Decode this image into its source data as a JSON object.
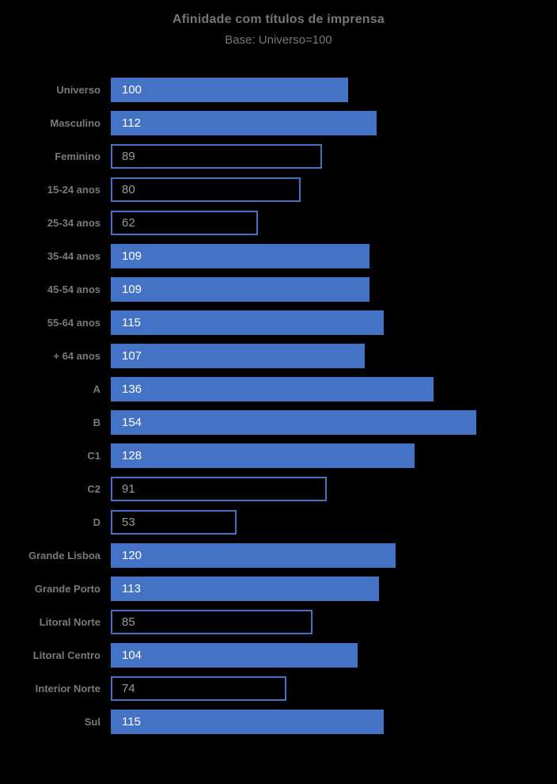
{
  "header": {
    "title": "Afinidade com títulos de imprensa",
    "subtitle": "Base: Universo=100"
  },
  "colors": {
    "background": "#000000",
    "bar_fill": "#4472C4",
    "bar_outline": "#4472C4",
    "title_text": "#767676",
    "category_label_text": "#7A7A7A",
    "value_text_on_filled": "#FFFFFF",
    "value_text_on_outlined": "#9A9A9A"
  },
  "chart_data": {
    "type": "bar",
    "orientation": "horizontal",
    "title": "Afinidade com títulos de imprensa",
    "subtitle": "Base: Universo=100",
    "categories": [
      "Universo",
      "Masculino",
      "Feminino",
      "15-24 anos",
      "25-34 anos",
      "35-44 anos",
      "45-54 anos",
      "55-64 anos",
      "+ 64 anos",
      "A",
      "B",
      "C1",
      "C2",
      "D",
      "Grande Lisboa",
      "Grande Porto",
      "Litoral Norte",
      "Litoral Centro",
      "Interior Norte",
      "Sul"
    ],
    "values": [
      100,
      112,
      89,
      80,
      62,
      109,
      109,
      115,
      107,
      136,
      154,
      128,
      91,
      53,
      120,
      113,
      85,
      104,
      74,
      115
    ],
    "bar_styles": [
      "filled",
      "filled",
      "outlined",
      "outlined",
      "outlined",
      "filled",
      "filled",
      "filled",
      "filled",
      "filled",
      "filled",
      "filled",
      "outlined",
      "outlined",
      "filled",
      "filled",
      "outlined",
      "filled",
      "outlined",
      "filled"
    ],
    "style_rule": "values >= 100 drawn as solid blue bars; values < 100 drawn as blue-outlined hollow bars",
    "value_labels_shown": true,
    "value_label_position": "inside-start",
    "xlim": [
      0,
      188
    ],
    "grid": false,
    "axes_hidden": true,
    "legend": "none"
  }
}
